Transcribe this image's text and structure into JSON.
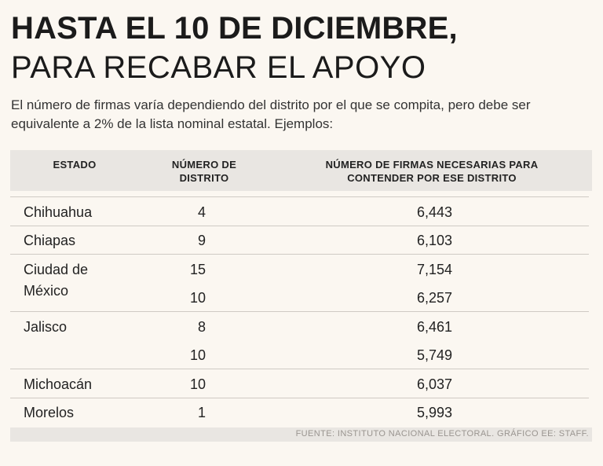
{
  "title": {
    "line1": "HASTA EL 10 DE DICIEMBRE,",
    "line2": "PARA RECABAR EL APOYO"
  },
  "intro": "El número de firmas varía dependiendo del distrito por el que se compita, pero debe ser equivalente a 2% de la lista nominal estatal. Ejemplos:",
  "table": {
    "headers": {
      "estado": "ESTADO",
      "distrito_1": "NÚMERO DE",
      "distrito_2": "DISTRITO",
      "firmas_1": "NÚMERO DE FIRMAS NECESARIAS PARA",
      "firmas_2": "CONTENDER POR ESE DISTRITO"
    },
    "rows": [
      {
        "estado": "Chihuahua",
        "distrito": "4",
        "firmas": "6,443"
      },
      {
        "estado": "Chiapas",
        "distrito": "9",
        "firmas": "6,103"
      },
      {
        "estado": "Ciudad de",
        "distrito": "15",
        "firmas": "7,154"
      },
      {
        "estado": "México",
        "distrito": "10",
        "firmas": "6,257"
      },
      {
        "estado": "Jalisco",
        "distrito": "8",
        "firmas": "6,461"
      },
      {
        "estado": "",
        "distrito": "10",
        "firmas": "5,749"
      },
      {
        "estado": "Michoacán",
        "distrito": "10",
        "firmas": "6,037"
      },
      {
        "estado": "Morelos",
        "distrito": "1",
        "firmas": "5,993"
      }
    ]
  },
  "source": "FUENTE: INSTITUTO NACIONAL ELECTORAL. GRÁFICO EE: STAFF."
}
